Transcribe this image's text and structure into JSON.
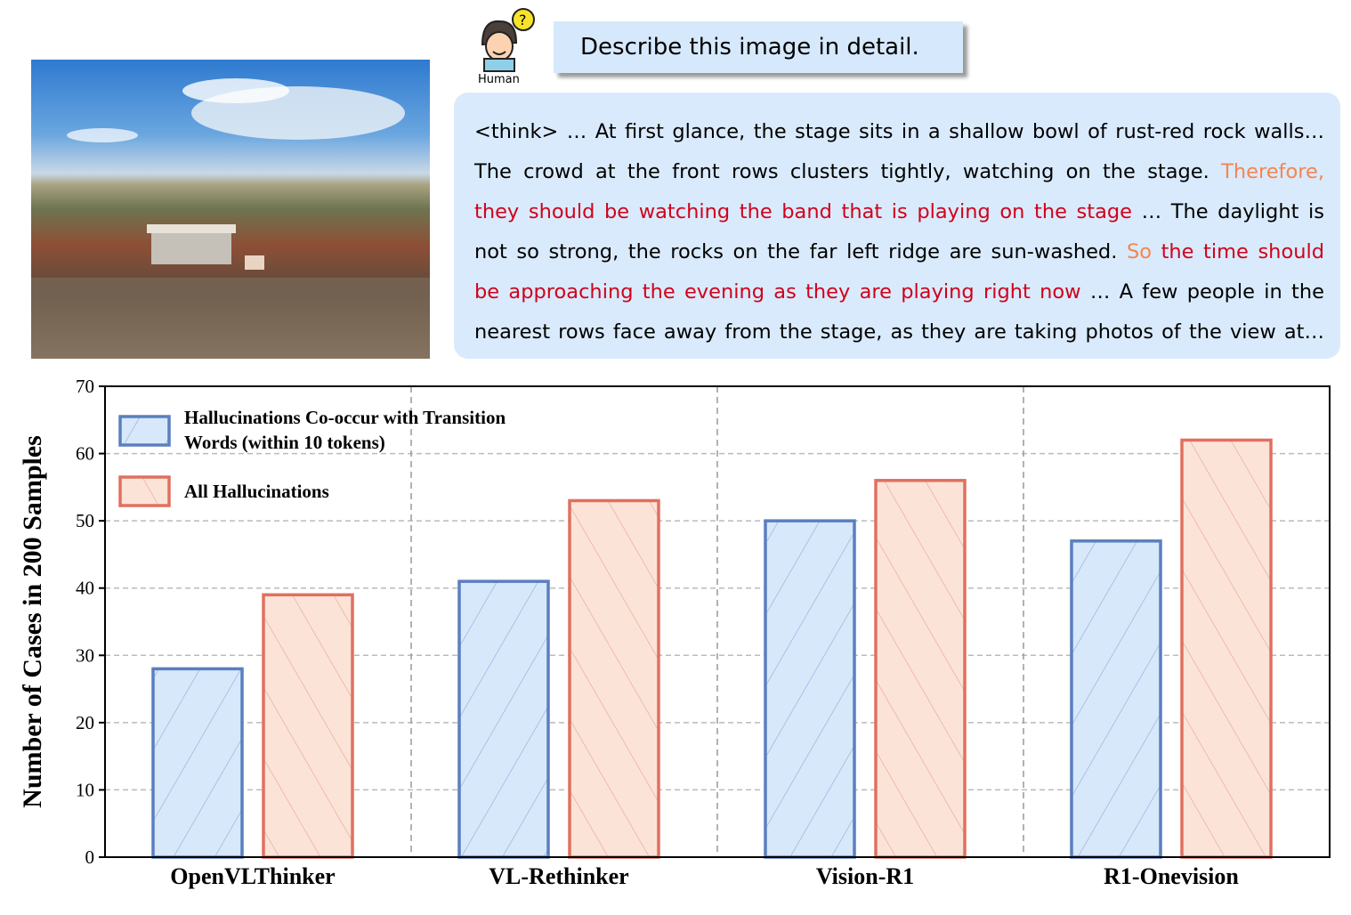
{
  "human_label": "Human",
  "prompt": "Describe this image in detail.",
  "response_lines": [
    [
      {
        "t": "<think> … At first glance, the stage sits in a shallow bowl of rust-red rock walls…",
        "c": "#000000"
      }
    ],
    [
      {
        "t": "The crowd at the front rows clusters tightly, watching on the stage. ",
        "c": "#000000"
      },
      {
        "t": "Therefore,",
        "c": "#f5854f"
      }
    ],
    [
      {
        "t": "they should be watching the band that is playing on the stage",
        "c": "#d0021b"
      },
      {
        "t": " … The daylight is",
        "c": "#000000"
      }
    ],
    [
      {
        "t": "not so strong, the rocks on the far left ridge are sun-washed. ",
        "c": "#000000"
      },
      {
        "t": "So",
        "c": "#f5854f"
      },
      {
        "t": " the time should",
        "c": "#d0021b"
      }
    ],
    [
      {
        "t": "be approaching the evening as they are playing right now",
        "c": "#d0021b"
      },
      {
        "t": " …  A few people in the",
        "c": "#000000"
      }
    ],
    [
      {
        "t": "nearest rows face away from the stage, as they are taking photos of the view at…",
        "c": "#000000"
      }
    ]
  ],
  "colors": {
    "blue_edge": "#5b7fbf",
    "blue_fill": "#d7e8fb",
    "orange_edge": "#e07060",
    "orange_fill": "#fbe4d7"
  },
  "chart_data": {
    "type": "bar",
    "categories": [
      "OpenVLThinker",
      "VL-Rethinker",
      "Vision-R1",
      "R1-Onevision"
    ],
    "series": [
      {
        "name": "Hallucinations Co-occur with Transition Words (within 10 tokens)",
        "legend_lines": [
          "Hallucinations Co-occur with Transition",
          "Words (within 10 tokens)"
        ],
        "values": [
          28,
          41,
          50,
          47
        ]
      },
      {
        "name": "All Hallucinations",
        "legend_lines": [
          "All Hallucinations"
        ],
        "values": [
          39,
          53,
          56,
          62
        ]
      }
    ],
    "ylabel": "Number of Cases in 200 Samples",
    "ylim": [
      0,
      70
    ],
    "yticks": [
      0,
      10,
      20,
      30,
      40,
      50,
      60,
      70
    ],
    "grid": true,
    "legend": "top-left"
  }
}
